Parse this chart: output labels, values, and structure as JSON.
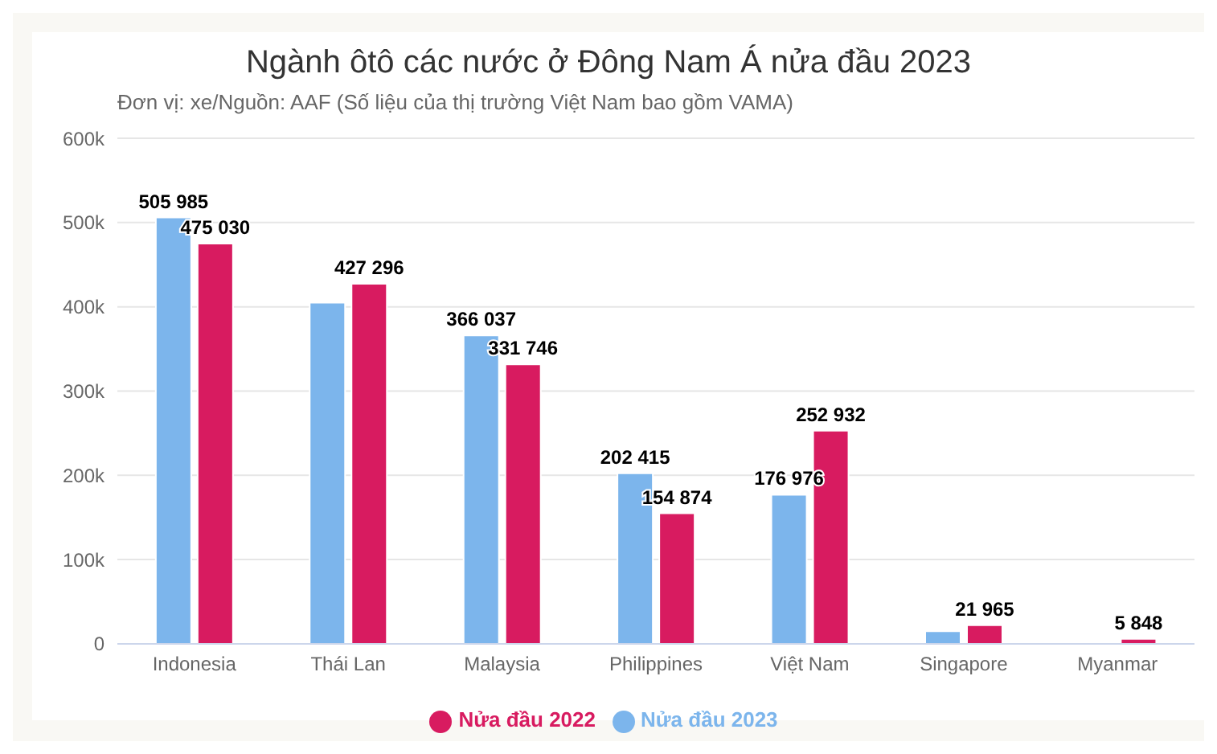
{
  "chart_data": {
    "type": "bar",
    "title": "Ngành ôtô các nước ở Đông Nam Á nửa đầu 2023",
    "subtitle": "Đơn vị: xe/Nguồn: AAF (Số liệu của thị trường Việt Nam bao gồm VAMA)",
    "categories": [
      "Indonesia",
      "Thái Lan",
      "Malaysia",
      "Philippines",
      "Việt Nam",
      "Singapore",
      "Myanmar"
    ],
    "series": [
      {
        "name": "Nửa đầu 2023",
        "color": "#7cb5ec",
        "values": [
          505985,
          405000,
          366037,
          202415,
          176976,
          15000,
          null
        ],
        "value_labels": [
          "505 985",
          null,
          "366 037",
          "202 415",
          "176 976",
          null,
          null
        ]
      },
      {
        "name": "Nửa đầu 2022",
        "color": "#d81b60",
        "values": [
          475030,
          427296,
          331746,
          154874,
          252932,
          21965,
          5848
        ],
        "value_labels": [
          "475 030",
          "427 296",
          "331 746",
          "154 874",
          "252 932",
          "21 965",
          "5 848"
        ]
      }
    ],
    "ylim": [
      0,
      600000
    ],
    "yticks": [
      {
        "value": 0,
        "label": "0"
      },
      {
        "value": 100000,
        "label": "100k"
      },
      {
        "value": 200000,
        "label": "200k"
      },
      {
        "value": 300000,
        "label": "300k"
      },
      {
        "value": 400000,
        "label": "400k"
      },
      {
        "value": 500000,
        "label": "500k"
      },
      {
        "value": 600000,
        "label": "600k"
      }
    ],
    "grid": "y",
    "legend": "bottom"
  }
}
